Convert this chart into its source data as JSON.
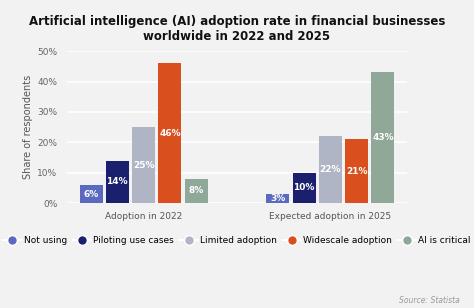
{
  "title": "Artificial intelligence (AI) adoption rate in financial businesses\nworldwide in 2022 and 2025",
  "ylabel": "Share of respondents",
  "xlabel_groups": [
    "Adoption in 2022",
    "Expected adoption in 2025"
  ],
  "categories": [
    "Not using",
    "Piloting use cases",
    "Limited adoption",
    "Widescale adoption",
    "AI is critical"
  ],
  "colors": [
    "#5b6abf",
    "#1a1f6e",
    "#b0b5c5",
    "#d94f1e",
    "#8fa898"
  ],
  "values_2022": [
    6,
    14,
    25,
    46,
    8
  ],
  "values_2025": [
    3,
    10,
    22,
    21,
    43
  ],
  "ylim": [
    0,
    50
  ],
  "yticks": [
    0,
    10,
    20,
    30,
    40,
    50
  ],
  "ytick_labels": [
    "0%",
    "10%",
    "20%",
    "30%",
    "40%",
    "50%"
  ],
  "source": "Source: Statista",
  "background_color": "#f2f2f2",
  "bar_label_color": "white",
  "bar_label_fontsize": 6.5,
  "title_fontsize": 8.5,
  "legend_fontsize": 6.5,
  "ylabel_fontsize": 7
}
